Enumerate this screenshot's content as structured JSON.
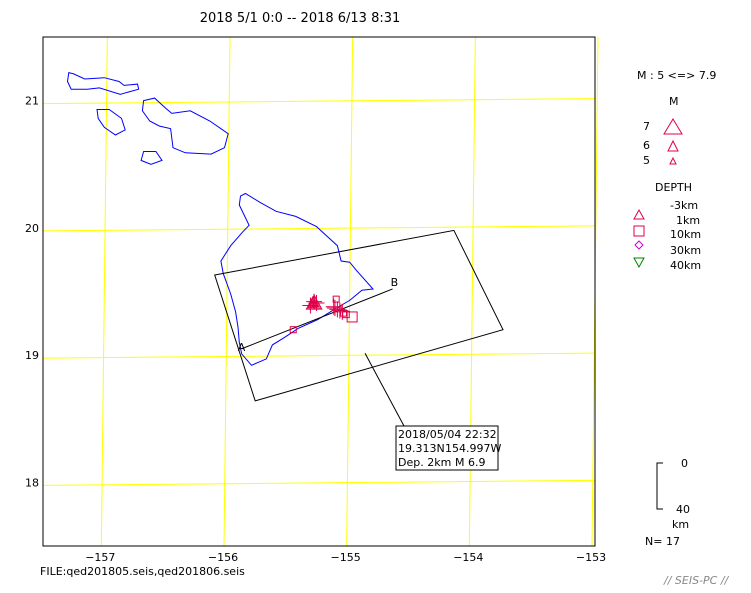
{
  "title": "2018 5/1 0:0 -- 2018 6/13 8:31",
  "file_label": "FILE:qed201805.seis,qed201806.seis",
  "watermark": "// SEIS-PC //",
  "count_label": "N= 17",
  "legend": {
    "mag_range": "M : 5 <=> 7.9",
    "mag_header": "M",
    "mag_items": [
      {
        "label": "7",
        "value": 7
      },
      {
        "label": "6",
        "value": 6
      },
      {
        "label": "5",
        "value": 5
      }
    ],
    "depth_header": "DEPTH",
    "depth_items": [
      {
        "label": "-3km",
        "symbol": "triangle",
        "color": "#e0004a"
      },
      {
        "label": "1km",
        "symbol": "square",
        "color": "#e0004a"
      },
      {
        "label": "10km",
        "symbol": "square",
        "color": "#e0004a"
      },
      {
        "label": "30km",
        "symbol": "diamond",
        "color": "#cc00cc"
      },
      {
        "label": "40km",
        "symbol": "triangle-down",
        "color": "#008000"
      }
    ],
    "scale_top": "0",
    "scale_bottom": "40",
    "scale_unit": "km"
  },
  "annotation": {
    "line1": "2018/05/04 22:32",
    "line2_lat": "19.313N",
    "line2_lon": "154.997W",
    "line3_dep": "Dep. 2km",
    "line3_mag": "M 6.9"
  },
  "section": {
    "a_label": "A",
    "b_label": "B"
  },
  "chart_data": {
    "type": "scatter",
    "title": "2018 5/1 0:0 -- 2018 6/13 8:31",
    "xlabel": "",
    "ylabel": "",
    "xlim": [
      -157.5,
      -153.0
    ],
    "ylim": [
      17.5,
      21.5
    ],
    "xticks": [
      -157,
      -156,
      -155,
      -154,
      -153
    ],
    "xtick_labels": [
      "−157",
      "−156",
      "−155",
      "−154",
      "−153"
    ],
    "yticks": [
      18,
      19,
      20,
      21
    ],
    "ytick_labels": [
      "18",
      "19",
      "20",
      "21"
    ],
    "grid": true,
    "grid_color": "#ffff00",
    "coast_color": "#0000ff",
    "section_color": "#000000",
    "section_line": {
      "a": [
        -155.88,
        19.05
      ],
      "b": [
        -154.65,
        19.52
      ]
    },
    "section_box": [
      [
        -156.1,
        19.63
      ],
      [
        -154.15,
        19.98
      ],
      [
        -153.75,
        19.2
      ],
      [
        -155.77,
        18.64
      ]
    ],
    "main_shock": {
      "lon": -154.997,
      "lat": 19.313,
      "depth_km": 2,
      "mag": 6.9
    },
    "events": [
      {
        "lon": -155.29,
        "lat": 19.41,
        "symbol": "triangle",
        "color": "#e0004a",
        "mag": 6.9
      },
      {
        "lon": -155.29,
        "lat": 19.42,
        "symbol": "cross",
        "color": "#e0004a",
        "mag": 5.0
      },
      {
        "lon": -155.31,
        "lat": 19.4,
        "symbol": "triangle",
        "color": "#e0004a",
        "mag": 5.3
      },
      {
        "lon": -155.28,
        "lat": 19.4,
        "symbol": "triangle",
        "color": "#e0004a",
        "mag": 5.0
      },
      {
        "lon": -155.3,
        "lat": 19.43,
        "symbol": "triangle",
        "color": "#e0004a",
        "mag": 5.2
      },
      {
        "lon": -155.12,
        "lat": 19.37,
        "symbol": "cross",
        "color": "#e0004a",
        "mag": 5.0
      },
      {
        "lon": -155.1,
        "lat": 19.36,
        "symbol": "cross",
        "color": "#e0004a",
        "mag": 5.1
      },
      {
        "lon": -155.11,
        "lat": 19.44,
        "symbol": "square",
        "color": "#e0004a",
        "mag": 5.0
      },
      {
        "lon": -155.05,
        "lat": 19.33,
        "symbol": "square",
        "color": "#e0004a",
        "mag": 5.0
      },
      {
        "lon": -155.03,
        "lat": 19.32,
        "symbol": "square",
        "color": "#e0004a",
        "mag": 5.1
      },
      {
        "lon": -154.98,
        "lat": 19.3,
        "symbol": "square",
        "color": "#e0004a",
        "mag": 5.8
      },
      {
        "lon": -155.46,
        "lat": 19.2,
        "symbol": "square",
        "color": "#e0004a",
        "mag": 5.0
      },
      {
        "lon": -155.32,
        "lat": 19.39,
        "symbol": "cross",
        "color": "#e0004a",
        "mag": 5.0
      },
      {
        "lon": -155.27,
        "lat": 19.41,
        "symbol": "cross",
        "color": "#e0004a",
        "mag": 5.0
      },
      {
        "lon": -155.13,
        "lat": 19.38,
        "symbol": "cross",
        "color": "#e0004a",
        "mag": 5.0
      },
      {
        "lon": -155.08,
        "lat": 19.35,
        "symbol": "cross",
        "color": "#e0004a",
        "mag": 5.0
      },
      {
        "lon": -155.06,
        "lat": 19.34,
        "symbol": "cross",
        "color": "#e0004a",
        "mag": 5.0
      }
    ],
    "islands": [
      {
        "name": "Kauai-Niihau-region",
        "points": [
          [
            -157.29,
            21.22
          ],
          [
            -157.25,
            21.21
          ],
          [
            -157.16,
            21.17
          ],
          [
            -157.0,
            21.18
          ],
          [
            -156.88,
            21.15
          ],
          [
            -156.84,
            21.12
          ],
          [
            -156.73,
            21.13
          ],
          [
            -156.72,
            21.09
          ],
          [
            -156.87,
            21.05
          ],
          [
            -157.04,
            21.1
          ],
          [
            -157.14,
            21.09
          ],
          [
            -157.27,
            21.09
          ],
          [
            -157.3,
            21.15
          ]
        ]
      },
      {
        "name": "Lanai",
        "points": [
          [
            -157.06,
            20.93
          ],
          [
            -156.96,
            20.93
          ],
          [
            -156.86,
            20.86
          ],
          [
            -156.83,
            20.77
          ],
          [
            -156.91,
            20.73
          ],
          [
            -157.0,
            20.79
          ],
          [
            -157.05,
            20.86
          ]
        ]
      },
      {
        "name": "Maui",
        "points": [
          [
            -156.68,
            21.0
          ],
          [
            -156.59,
            21.02
          ],
          [
            -156.5,
            20.94
          ],
          [
            -156.45,
            20.9
          ],
          [
            -156.3,
            20.92
          ],
          [
            -156.14,
            20.84
          ],
          [
            -155.99,
            20.74
          ],
          [
            -156.02,
            20.63
          ],
          [
            -156.13,
            20.58
          ],
          [
            -156.34,
            20.59
          ],
          [
            -156.44,
            20.63
          ],
          [
            -156.46,
            20.78
          ],
          [
            -156.55,
            20.8
          ],
          [
            -156.63,
            20.84
          ],
          [
            -156.69,
            20.92
          ]
        ]
      },
      {
        "name": "Kahoolawe",
        "points": [
          [
            -156.68,
            20.6
          ],
          [
            -156.58,
            20.6
          ],
          [
            -156.53,
            20.53
          ],
          [
            -156.62,
            20.5
          ],
          [
            -156.7,
            20.53
          ]
        ]
      },
      {
        "name": "Hawaii",
        "points": [
          [
            -155.89,
            20.25
          ],
          [
            -155.85,
            20.27
          ],
          [
            -155.73,
            20.2
          ],
          [
            -155.6,
            20.13
          ],
          [
            -155.44,
            20.09
          ],
          [
            -155.27,
            20.01
          ],
          [
            -155.18,
            19.93
          ],
          [
            -155.1,
            19.86
          ],
          [
            -155.07,
            19.74
          ],
          [
            -155.0,
            19.73
          ],
          [
            -154.94,
            19.66
          ],
          [
            -154.81,
            19.52
          ],
          [
            -154.9,
            19.51
          ],
          [
            -155.0,
            19.43
          ],
          [
            -155.09,
            19.38
          ],
          [
            -155.26,
            19.28
          ],
          [
            -155.42,
            19.21
          ],
          [
            -155.53,
            19.14
          ],
          [
            -155.63,
            19.08
          ],
          [
            -155.68,
            18.97
          ],
          [
            -155.8,
            18.92
          ],
          [
            -155.88,
            19.01
          ],
          [
            -155.9,
            19.1
          ],
          [
            -155.91,
            19.22
          ],
          [
            -155.93,
            19.34
          ],
          [
            -155.97,
            19.48
          ],
          [
            -156.03,
            19.64
          ],
          [
            -156.05,
            19.74
          ],
          [
            -155.97,
            19.86
          ],
          [
            -155.87,
            19.97
          ],
          [
            -155.82,
            20.02
          ],
          [
            -155.86,
            20.1
          ],
          [
            -155.9,
            20.18
          ]
        ]
      }
    ]
  }
}
